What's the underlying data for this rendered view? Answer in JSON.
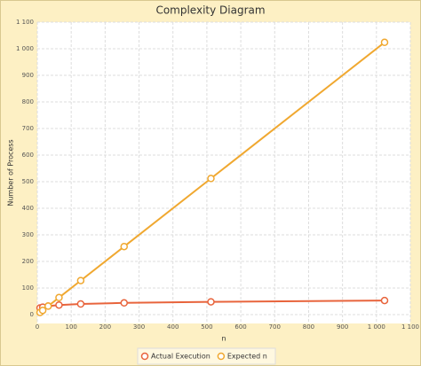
{
  "chart_data": {
    "type": "line",
    "title": "Complexity Diagram",
    "x_label": "n",
    "y_label": "Number of Process",
    "x": [
      8,
      16,
      32,
      64,
      128,
      256,
      512,
      1024
    ],
    "series": [
      {
        "name": "Actual Execution",
        "color": "#e8643c",
        "values": [
          25,
          28,
          32,
          36,
          40,
          44,
          48,
          53
        ]
      },
      {
        "name": "Expected n",
        "color": "#f0a830",
        "values": [
          8,
          16,
          32,
          64,
          128,
          256,
          512,
          1024
        ]
      }
    ],
    "xlim": [
      0,
      1100
    ],
    "xticks": [
      0,
      100,
      200,
      300,
      400,
      500,
      600,
      700,
      800,
      900,
      {
        "value": 1000,
        "label": "1 000"
      },
      {
        "value": 1100,
        "label": "1 100"
      }
    ],
    "ylim": [
      0,
      1100
    ],
    "yticks": [
      0,
      100,
      200,
      300,
      400,
      500,
      600,
      700,
      800,
      900,
      {
        "value": 1000,
        "label": "1 000"
      },
      {
        "value": 1100,
        "label": "1 100"
      }
    ],
    "grid": true
  }
}
